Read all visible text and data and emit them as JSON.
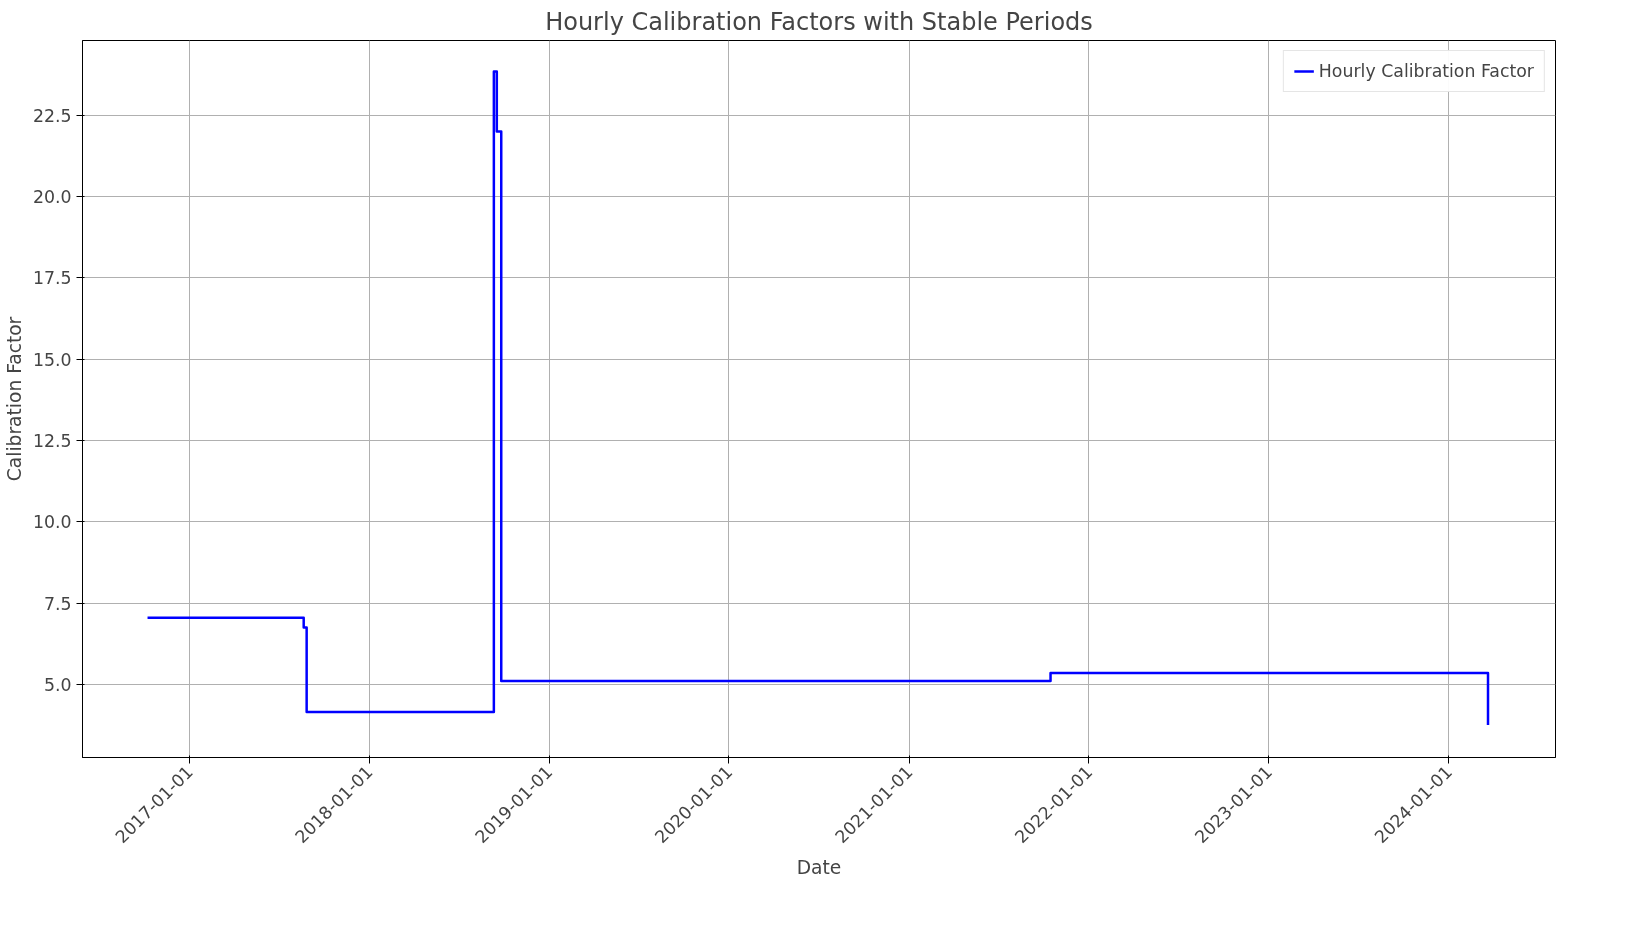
{
  "chart_data": {
    "type": "step",
    "title": "Hourly Calibration Factors with Stable Periods",
    "xlabel": "Date",
    "ylabel": "Calibration Factor",
    "x": [
      "2016-10-08",
      "2017-08-21",
      "2017-08-27",
      "2018-09-11",
      "2018-09-17",
      "2018-09-26",
      "2021-10-15",
      "2024-03-21"
    ],
    "series": [
      {
        "name": "Hourly Calibration Factor",
        "color": "#0000ff",
        "values": [
          7.05,
          6.75,
          4.15,
          23.85,
          22.0,
          5.1,
          5.35,
          3.75
        ]
      }
    ],
    "xlim": [
      "2016-05-29",
      "2024-08-05"
    ],
    "xticks": [
      {
        "value": "2017-01-01",
        "label": "2017-01-01"
      },
      {
        "value": "2018-01-01",
        "label": "2018-01-01"
      },
      {
        "value": "2019-01-01",
        "label": "2019-01-01"
      },
      {
        "value": "2020-01-01",
        "label": "2020-01-01"
      },
      {
        "value": "2021-01-01",
        "label": "2021-01-01"
      },
      {
        "value": "2022-01-01",
        "label": "2022-01-01"
      },
      {
        "value": "2023-01-01",
        "label": "2023-01-01"
      },
      {
        "value": "2024-01-01",
        "label": "2024-01-01"
      }
    ],
    "ylim": [
      2.75,
      24.8
    ],
    "yticks": [
      {
        "value": 5,
        "label": "5.0"
      },
      7.5,
      {
        "value": 10,
        "label": "10.0"
      },
      12.5,
      {
        "value": 15,
        "label": "15.0"
      },
      17.5,
      {
        "value": 20,
        "label": "20.0"
      },
      22.5
    ],
    "grid": true,
    "legend": "top right",
    "line_style": "solid",
    "marker": "none"
  }
}
